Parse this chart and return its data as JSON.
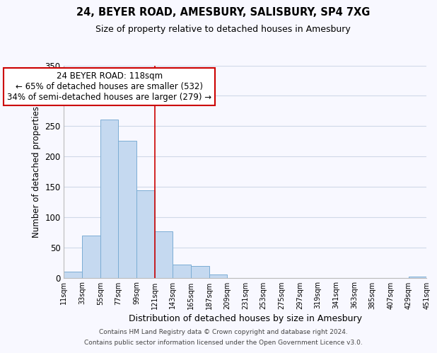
{
  "title": "24, BEYER ROAD, AMESBURY, SALISBURY, SP4 7XG",
  "subtitle": "Size of property relative to detached houses in Amesbury",
  "xlabel": "Distribution of detached houses by size in Amesbury",
  "ylabel": "Number of detached properties",
  "bin_edges": [
    11,
    33,
    55,
    77,
    99,
    121,
    143,
    165,
    187,
    209,
    231,
    253,
    275,
    297,
    319,
    341,
    363,
    385,
    407,
    429,
    451
  ],
  "bin_counts": [
    10,
    69,
    261,
    226,
    144,
    77,
    22,
    19,
    5,
    0,
    0,
    0,
    0,
    0,
    0,
    0,
    0,
    0,
    0,
    2
  ],
  "bar_color": "#c5d9f0",
  "bar_edge_color": "#7badd4",
  "vline_x": 121,
  "vline_color": "#cc0000",
  "annotation_line1": "24 BEYER ROAD: 118sqm",
  "annotation_line2": "← 65% of detached houses are smaller (532)",
  "annotation_line3": "34% of semi-detached houses are larger (279) →",
  "annotation_box_color": "white",
  "annotation_box_edge_color": "#cc0000",
  "ylim": [
    0,
    350
  ],
  "yticks": [
    0,
    50,
    100,
    150,
    200,
    250,
    300,
    350
  ],
  "tick_labels": [
    "11sqm",
    "33sqm",
    "55sqm",
    "77sqm",
    "99sqm",
    "121sqm",
    "143sqm",
    "165sqm",
    "187sqm",
    "209sqm",
    "231sqm",
    "253sqm",
    "275sqm",
    "297sqm",
    "319sqm",
    "341sqm",
    "363sqm",
    "385sqm",
    "407sqm",
    "429sqm",
    "451sqm"
  ],
  "footer_line1": "Contains HM Land Registry data © Crown copyright and database right 2024.",
  "footer_line2": "Contains public sector information licensed under the Open Government Licence v3.0.",
  "background_color": "#f8f8ff",
  "grid_color": "#d0d8e8",
  "title_fontsize": 10.5,
  "subtitle_fontsize": 9,
  "ylabel_fontsize": 8.5,
  "xlabel_fontsize": 9,
  "annotation_fontsize": 8.5,
  "tick_fontsize": 7,
  "footer_fontsize": 6.5
}
